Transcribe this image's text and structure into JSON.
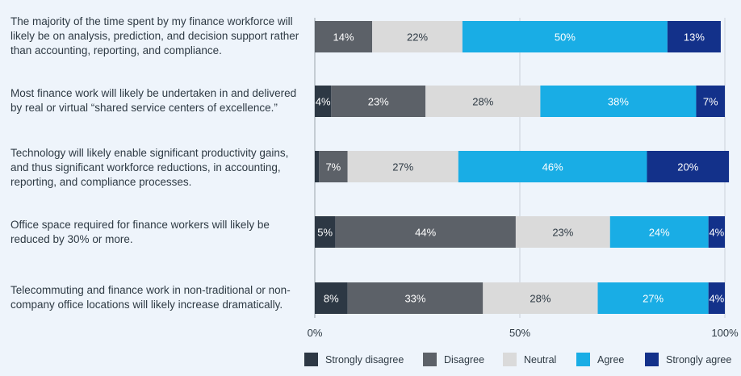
{
  "chart_data": {
    "type": "bar",
    "orientation": "horizontal",
    "stacked": true,
    "title": "",
    "xlabel": "",
    "ylabel": "",
    "xlim": [
      0,
      100
    ],
    "x_ticks": [
      "0%",
      "50%",
      "100%"
    ],
    "grid": true,
    "legend_position": "bottom",
    "categories": [
      "The majority of the time spent by my finance workforce will likely be on analysis, prediction, and decision support rather than accounting, reporting, and compliance.",
      "Most finance work will likely be undertaken in and delivered by real or virtual “shared service centers of excellence.”",
      "Technology will likely enable significant productivity gains, and thus significant workforce reductions, in accounting, reporting, and compliance processes.",
      "Office space required for finance workers will likely be reduced by 30% or more.",
      "Telecommuting and finance work in non-traditional or non-company office locations will likely increase dramatically."
    ],
    "series": [
      {
        "name": "Strongly disagree",
        "color": "#2d3844",
        "values": [
          0,
          4,
          1,
          5,
          8
        ]
      },
      {
        "name": "Disagree",
        "color": "#5c6168",
        "values": [
          14,
          23,
          7,
          44,
          33
        ]
      },
      {
        "name": "Neutral",
        "color": "#dadada",
        "values": [
          22,
          28,
          27,
          23,
          28
        ]
      },
      {
        "name": "Agree",
        "color": "#19ade5",
        "values": [
          50,
          38,
          46,
          24,
          27
        ]
      },
      {
        "name": "Strongly agree",
        "color": "#13318a",
        "values": [
          13,
          7,
          20,
          4,
          4
        ]
      }
    ],
    "data_labels": [
      [
        "",
        "14%",
        "22%",
        "50%",
        "13%"
      ],
      [
        "4%",
        "23%",
        "28%",
        "38%",
        "7%"
      ],
      [
        "",
        "7%",
        "27%",
        "46%",
        "20%"
      ],
      [
        "5%",
        "44%",
        "23%",
        "24%",
        "4%"
      ],
      [
        "8%",
        "33%",
        "28%",
        "27%",
        "4%"
      ]
    ]
  }
}
